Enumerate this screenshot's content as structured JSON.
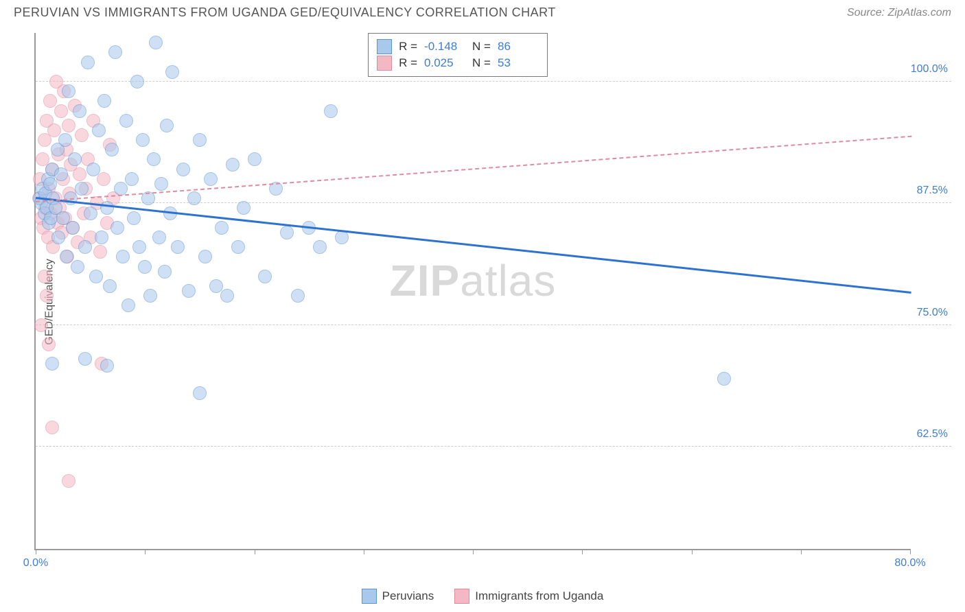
{
  "title": "PERUVIAN VS IMMIGRANTS FROM UGANDA GED/EQUIVALENCY CORRELATION CHART",
  "source": "Source: ZipAtlas.com",
  "ylabel": "GED/Equivalency",
  "watermark_bold": "ZIP",
  "watermark_rest": "atlas",
  "chart": {
    "type": "scatter",
    "xlim": [
      0,
      80
    ],
    "ylim": [
      52,
      105
    ],
    "x_ticks": [
      0,
      10,
      20,
      30,
      40,
      50,
      60,
      70,
      80
    ],
    "x_tick_labels": {
      "0": "0.0%",
      "80": "80.0%"
    },
    "y_gridlines": [
      62.5,
      75.0,
      87.5,
      100.0
    ],
    "y_tick_labels": [
      "62.5%",
      "75.0%",
      "87.5%",
      "100.0%"
    ],
    "background_color": "#ffffff",
    "grid_color": "#cccccc",
    "axis_color": "#999999",
    "label_color": "#3b7dd8",
    "series": [
      {
        "name": "Peruvians",
        "fill": "#a8c8ec",
        "stroke": "#5b93d6",
        "fill_opacity": 0.55,
        "marker_size": 20,
        "R": "-0.148",
        "N": "86",
        "trend": {
          "x1": 0,
          "y1": 88.2,
          "x2": 80,
          "y2": 78.5,
          "style": "solid",
          "color": "#2d72d0",
          "width": 3
        },
        "points": [
          [
            0.4,
            88
          ],
          [
            0.5,
            87.5
          ],
          [
            0.6,
            89
          ],
          [
            0.8,
            86.5
          ],
          [
            0.9,
            88.5
          ],
          [
            1.0,
            87
          ],
          [
            1.1,
            90
          ],
          [
            1.2,
            85.5
          ],
          [
            1.3,
            89.5
          ],
          [
            1.4,
            86
          ],
          [
            1.5,
            91
          ],
          [
            1.6,
            88
          ],
          [
            1.8,
            87
          ],
          [
            2.0,
            93
          ],
          [
            2.1,
            84
          ],
          [
            2.3,
            90.5
          ],
          [
            2.5,
            86
          ],
          [
            2.7,
            94
          ],
          [
            2.8,
            82
          ],
          [
            3.0,
            99
          ],
          [
            3.2,
            88
          ],
          [
            3.4,
            85
          ],
          [
            3.6,
            92
          ],
          [
            3.8,
            81
          ],
          [
            4.0,
            97
          ],
          [
            4.2,
            89
          ],
          [
            4.5,
            83
          ],
          [
            4.8,
            102
          ],
          [
            5.0,
            86.5
          ],
          [
            5.3,
            91
          ],
          [
            5.5,
            80
          ],
          [
            5.8,
            95
          ],
          [
            6.0,
            84
          ],
          [
            6.3,
            98
          ],
          [
            6.5,
            87
          ],
          [
            6.8,
            79
          ],
          [
            7.0,
            93
          ],
          [
            7.3,
            103
          ],
          [
            7.5,
            85
          ],
          [
            7.8,
            89
          ],
          [
            8.0,
            82
          ],
          [
            8.3,
            96
          ],
          [
            8.5,
            77
          ],
          [
            8.8,
            90
          ],
          [
            9.0,
            86
          ],
          [
            9.3,
            100
          ],
          [
            9.5,
            83
          ],
          [
            9.8,
            94
          ],
          [
            10.0,
            81
          ],
          [
            10.3,
            88
          ],
          [
            10.5,
            78
          ],
          [
            10.8,
            92
          ],
          [
            11.0,
            104
          ],
          [
            11.3,
            84
          ],
          [
            11.5,
            89.5
          ],
          [
            11.8,
            80.5
          ],
          [
            12.0,
            95.5
          ],
          [
            12.3,
            86.5
          ],
          [
            12.5,
            101
          ],
          [
            13.0,
            83
          ],
          [
            13.5,
            91
          ],
          [
            14.0,
            78.5
          ],
          [
            14.5,
            88
          ],
          [
            15.0,
            94
          ],
          [
            15.5,
            82
          ],
          [
            16.0,
            90
          ],
          [
            16.5,
            79
          ],
          [
            17.0,
            85
          ],
          [
            17.5,
            78
          ],
          [
            18.0,
            91.5
          ],
          [
            18.5,
            83
          ],
          [
            19.0,
            87
          ],
          [
            20.0,
            92
          ],
          [
            21.0,
            80
          ],
          [
            22.0,
            89
          ],
          [
            23.0,
            84.5
          ],
          [
            24.0,
            78
          ],
          [
            25.0,
            85
          ],
          [
            26.0,
            83
          ],
          [
            27.0,
            97
          ],
          [
            28.0,
            84
          ],
          [
            1.5,
            71
          ],
          [
            6.5,
            70.8
          ],
          [
            15.0,
            68
          ],
          [
            4.5,
            71.5
          ],
          [
            63.0,
            69.5
          ]
        ]
      },
      {
        "name": "Immigrants from Uganda",
        "fill": "#f4b8c4",
        "stroke": "#e08aa0",
        "fill_opacity": 0.55,
        "marker_size": 20,
        "R": "0.025",
        "N": "53",
        "trend": {
          "x1": 0,
          "y1": 87.8,
          "x2": 80,
          "y2": 94.5,
          "style": "dashed",
          "color": "#e08aa0",
          "width": 2
        },
        "points": [
          [
            0.3,
            88
          ],
          [
            0.4,
            90
          ],
          [
            0.5,
            86
          ],
          [
            0.6,
            92
          ],
          [
            0.7,
            85
          ],
          [
            0.8,
            94
          ],
          [
            0.9,
            87
          ],
          [
            1.0,
            96
          ],
          [
            1.1,
            84
          ],
          [
            1.2,
            89
          ],
          [
            1.3,
            98
          ],
          [
            1.4,
            86.5
          ],
          [
            1.5,
            91
          ],
          [
            1.6,
            83
          ],
          [
            1.7,
            95
          ],
          [
            1.8,
            88
          ],
          [
            1.9,
            100
          ],
          [
            2.0,
            85.5
          ],
          [
            2.1,
            92.5
          ],
          [
            2.2,
            87
          ],
          [
            2.3,
            97
          ],
          [
            2.4,
            84.5
          ],
          [
            2.5,
            90
          ],
          [
            2.6,
            99
          ],
          [
            2.7,
            86
          ],
          [
            2.8,
            93
          ],
          [
            2.9,
            82
          ],
          [
            3.0,
            95.5
          ],
          [
            3.1,
            88.5
          ],
          [
            3.2,
            91.5
          ],
          [
            3.4,
            85
          ],
          [
            3.6,
            97.5
          ],
          [
            3.8,
            83.5
          ],
          [
            4.0,
            90.5
          ],
          [
            4.2,
            94.5
          ],
          [
            4.4,
            86.5
          ],
          [
            4.6,
            89
          ],
          [
            4.8,
            92
          ],
          [
            5.0,
            84
          ],
          [
            5.3,
            96
          ],
          [
            5.6,
            87.5
          ],
          [
            5.9,
            82.5
          ],
          [
            6.2,
            90
          ],
          [
            6.5,
            85.5
          ],
          [
            6.8,
            93.5
          ],
          [
            7.1,
            88
          ],
          [
            0.5,
            75
          ],
          [
            1.0,
            78
          ],
          [
            1.2,
            73
          ],
          [
            0.8,
            80
          ],
          [
            1.5,
            64.5
          ],
          [
            3.0,
            59
          ],
          [
            6.0,
            71
          ]
        ]
      }
    ]
  },
  "legend_box": {
    "rows": [
      {
        "swatch_fill": "#a8c8ec",
        "swatch_stroke": "#5b93d6",
        "r_label": "R =",
        "r_val": "-0.148",
        "n_label": "N =",
        "n_val": "86"
      },
      {
        "swatch_fill": "#f4b8c4",
        "swatch_stroke": "#e08aa0",
        "r_label": "R =",
        "r_val": "0.025",
        "n_label": "N =",
        "n_val": "53"
      }
    ]
  },
  "bottom_legend": [
    {
      "swatch_fill": "#a8c8ec",
      "swatch_stroke": "#5b93d6",
      "label": "Peruvians"
    },
    {
      "swatch_fill": "#f4b8c4",
      "swatch_stroke": "#e08aa0",
      "label": "Immigrants from Uganda"
    }
  ]
}
